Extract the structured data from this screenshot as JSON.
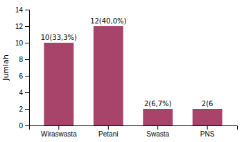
{
  "chart_data": {
    "type": "bar",
    "categories": [
      "Wiraswasta",
      "Petani",
      "Swasta",
      "PNS"
    ],
    "values": [
      10,
      12,
      2,
      2
    ],
    "value_labels": [
      "10(33,3%)",
      "12(40,0%)",
      "2(6,7%)",
      "2(6"
    ],
    "data_labels": true,
    "color": "#a8436a",
    "ylabel": "Jumlah",
    "ylim": [
      0,
      14
    ],
    "yticks": [
      0,
      2,
      4,
      6,
      8,
      10,
      12,
      14
    ]
  }
}
